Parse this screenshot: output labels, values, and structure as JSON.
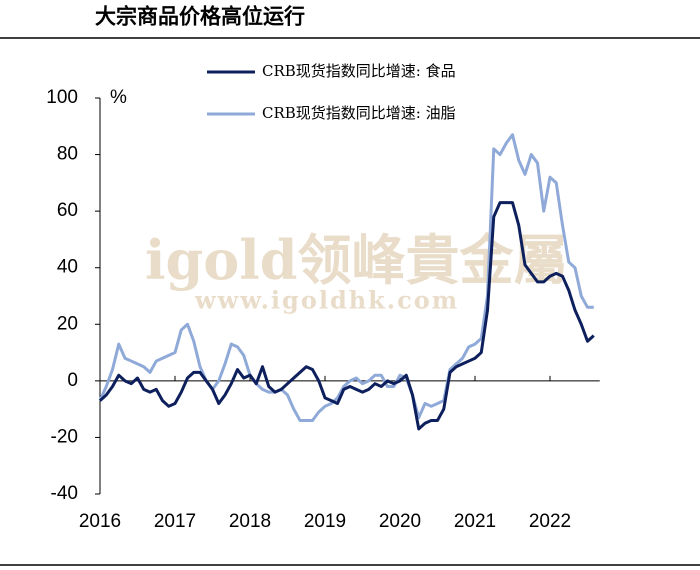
{
  "chart_data": {
    "type": "line",
    "title": "大宗商品价格高位运行",
    "y_unit": "%",
    "watermark": [
      "igold领峰貴金屬",
      "www.igoldhk.com"
    ],
    "categories": [
      "2016",
      null,
      null,
      null,
      null,
      null,
      null,
      null,
      null,
      null,
      null,
      null,
      "2017",
      null,
      null,
      null,
      null,
      null,
      null,
      null,
      null,
      null,
      null,
      null,
      "2018",
      null,
      null,
      null,
      null,
      null,
      null,
      null,
      null,
      null,
      null,
      null,
      "2019",
      null,
      null,
      null,
      null,
      null,
      null,
      null,
      null,
      null,
      null,
      null,
      "2020",
      null,
      null,
      null,
      null,
      null,
      null,
      null,
      null,
      null,
      null,
      null,
      "2021",
      null,
      null,
      null,
      null,
      null,
      null,
      null,
      null,
      null,
      null,
      null,
      "2022",
      null,
      null,
      null,
      null,
      null,
      null,
      null
    ],
    "series": [
      {
        "name": "CRB现货指数同比增速: 食品",
        "color": "#0d1f5c",
        "values": [
          -7,
          -5,
          -2,
          2,
          0,
          -1,
          1,
          -3,
          -4,
          -3,
          -7,
          -9,
          -8,
          -4,
          1,
          3,
          3,
          0,
          -3,
          -8,
          -5,
          -1,
          4,
          1,
          2,
          -1,
          5,
          -2,
          -4,
          -3,
          -1,
          1,
          3,
          5,
          4,
          0,
          -6,
          -7,
          -8,
          -3,
          -2,
          -3,
          -4,
          -3,
          -1,
          -2,
          0,
          -1,
          0,
          2,
          -5,
          -17,
          -15,
          -14,
          -14,
          -10,
          3,
          5,
          6,
          7,
          8,
          10,
          25,
          58,
          63,
          63,
          63,
          55,
          41,
          38,
          35,
          35,
          37,
          38,
          37,
          32,
          25,
          20,
          14,
          16
        ]
      },
      {
        "name": "CRB现货指数同比增速: 油脂",
        "color": "#8fa9d8",
        "values": [
          -7,
          -2,
          4,
          13,
          8,
          7,
          6,
          5,
          3,
          7,
          8,
          9,
          10,
          18,
          20,
          14,
          5,
          0,
          -3,
          0,
          6,
          13,
          12,
          9,
          2,
          -1,
          -3,
          -4,
          -4,
          -3,
          -5,
          -10,
          -14,
          -14,
          -14,
          -11,
          -9,
          -8,
          -6,
          -2,
          0,
          1,
          -1,
          0,
          2,
          2,
          -2,
          -2,
          2,
          1,
          -5,
          -13,
          -8,
          -9,
          -8,
          -7,
          4,
          6,
          8,
          12,
          13,
          15,
          30,
          82,
          80,
          84,
          87,
          78,
          73,
          80,
          77,
          60,
          72,
          70,
          55,
          42,
          40,
          30,
          26,
          26
        ]
      }
    ],
    "ylim": [
      -40,
      100
    ],
    "yticks": [
      -40,
      -20,
      0,
      20,
      40,
      60,
      80,
      100
    ]
  }
}
